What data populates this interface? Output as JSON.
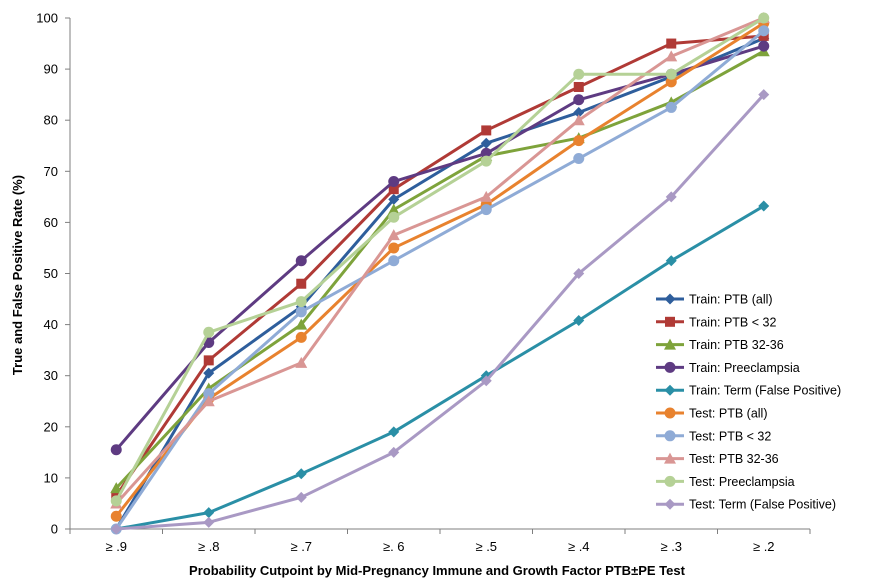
{
  "chart_data": {
    "type": "line",
    "title": "",
    "xlabel": "Probability Cutpoint by Mid-Pregnancy Immune and Growth Factor PTB±PE Test",
    "ylabel": "True and False Positive Rate (%)",
    "ylim": [
      0,
      100
    ],
    "yticks": [
      "0",
      "10",
      "20",
      "30",
      "40",
      "50",
      "60",
      "70",
      "80",
      "90",
      "100"
    ],
    "categories": [
      "≥ .9",
      "≥ .8",
      "≥ .7",
      "≥. 6",
      "≥ .5",
      "≥ .4",
      "≥ .3",
      "≥ .2"
    ],
    "grid": false,
    "legend_position": "bottom-right",
    "series": [
      {
        "name": "Train:  PTB (all)",
        "color": "#2e5e9c",
        "marker": "diamond",
        "values": [
          0,
          30.5,
          43.5,
          64.5,
          75.5,
          81.5,
          88.5,
          96
        ]
      },
      {
        "name": "Train:  PTB < 32",
        "color": "#b03a36",
        "marker": "square",
        "values": [
          6.5,
          33,
          48,
          66.5,
          78,
          86.5,
          95,
          96.5
        ]
      },
      {
        "name": "Train:  PTB 32-36",
        "color": "#7ea33b",
        "marker": "triangle",
        "values": [
          8,
          27.5,
          40,
          62.5,
          73,
          76.5,
          83.5,
          93.5
        ]
      },
      {
        "name": "Train:  Preeclampsia",
        "color": "#5e3b82",
        "marker": "circle",
        "values": [
          15.5,
          36.5,
          52.5,
          68,
          73.5,
          84,
          89,
          94.5
        ]
      },
      {
        "name": "Train:  Term (False Positive)",
        "color": "#2a8fa6",
        "marker": "diamond",
        "values": [
          0,
          3.2,
          10.8,
          19,
          30,
          40.8,
          52.5,
          63.2
        ]
      },
      {
        "name": "Test:  PTB (all)",
        "color": "#e8822e",
        "marker": "circle",
        "values": [
          2.5,
          25.5,
          37.5,
          55,
          63.5,
          76,
          87.5,
          99
        ]
      },
      {
        "name": "Test:  PTB < 32",
        "color": "#8fabd6",
        "marker": "circle",
        "values": [
          0,
          26.5,
          42.5,
          52.5,
          62.5,
          72.5,
          82.5,
          97.5
        ]
      },
      {
        "name": "Test:  PTB 32-36",
        "color": "#d99694",
        "marker": "triangle",
        "values": [
          5,
          25,
          32.5,
          57.5,
          65,
          80,
          92.5,
          100
        ]
      },
      {
        "name": "Test:  Preeclampsia",
        "color": "#b5d196",
        "marker": "circle",
        "values": [
          5.5,
          38.5,
          44.5,
          61,
          72,
          89,
          89,
          100
        ]
      },
      {
        "name": "Test:  Term (False Positive)",
        "color": "#a999c4",
        "marker": "diamond",
        "values": [
          0,
          1.3,
          6.2,
          15,
          29,
          50,
          65,
          85
        ]
      }
    ]
  }
}
